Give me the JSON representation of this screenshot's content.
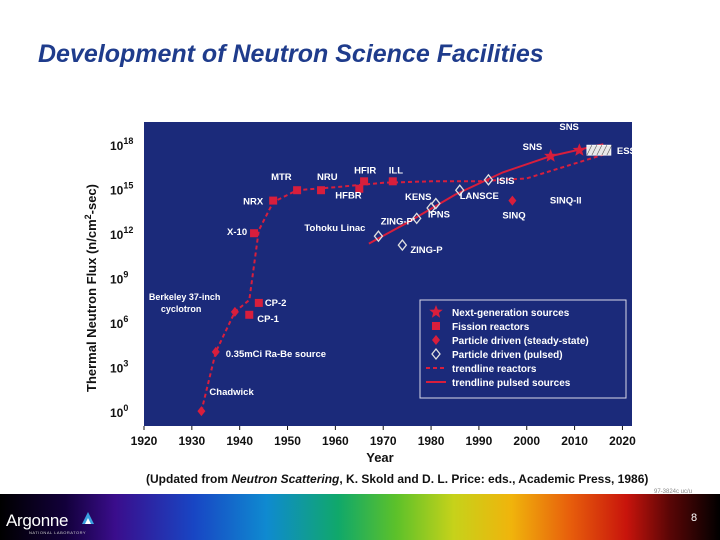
{
  "slide": {
    "title": "Development of Neutron Science Facilities",
    "credit_prefix": "(Updated from ",
    "credit_book": "Neutron Scattering",
    "credit_suffix": ", K. Skold and D. L. Price: eds., Academic Press, 1986)",
    "figure_code": "97-3824c uc/u",
    "logo_text": "Argonne",
    "logo_subtext": "NATIONAL LABORATORY",
    "page_number": "8"
  },
  "colors": {
    "panel": "#1b2a7a",
    "trend": "#d81e3c",
    "title": "#1f3c8c",
    "marker": "#d81e3c"
  },
  "chart_data": {
    "type": "scatter",
    "xlabel": "Year",
    "ylabel_main": "Thermal Neutron Flux (n/cm",
    "ylabel_sup": "2",
    "ylabel_end": "-sec)",
    "xlim": [
      1920,
      2022
    ],
    "ylim_exponent": [
      -1,
      19.5
    ],
    "log_scale_y": true,
    "x_ticks": [
      "1920",
      "1930",
      "1940",
      "1950",
      "1960",
      "1970",
      "1980",
      "1990",
      "2000",
      "2010",
      "2020"
    ],
    "y_ticks": [
      {
        "exp": 0,
        "base": "10",
        "sup": "0"
      },
      {
        "exp": 3,
        "base": "10",
        "sup": "3"
      },
      {
        "exp": 6,
        "base": "10",
        "sup": "6"
      },
      {
        "exp": 9,
        "base": "10",
        "sup": "9"
      },
      {
        "exp": 12,
        "base": "10",
        "sup": "12"
      },
      {
        "exp": 15,
        "base": "10",
        "sup": "15"
      },
      {
        "exp": 18,
        "base": "10",
        "sup": "18"
      }
    ],
    "series": [
      {
        "name": "Next-generation sources",
        "marker": "star",
        "points": [
          {
            "label": "SNS",
            "year": 2005,
            "exp": 17.2
          },
          {
            "label": "SNS",
            "year": 2011,
            "exp": 17.6
          }
        ]
      },
      {
        "name": "Fission reactors",
        "marker": "square",
        "points": [
          {
            "label": "X-10",
            "year": 1943,
            "exp": 12.0
          },
          {
            "label": "CP-2",
            "year": 1944,
            "exp": 7.3
          },
          {
            "label": "CP-1",
            "year": 1942,
            "exp": 6.5
          },
          {
            "label": "NRX",
            "year": 1947,
            "exp": 14.2
          },
          {
            "label": "MTR",
            "year": 1952,
            "exp": 14.9
          },
          {
            "label": "NRU",
            "year": 1957,
            "exp": 14.9
          },
          {
            "label": "HFBR",
            "year": 1965,
            "exp": 15.0
          },
          {
            "label": "HFIR",
            "year": 1966,
            "exp": 15.5
          },
          {
            "label": "ILL",
            "year": 1972,
            "exp": 15.5
          }
        ]
      },
      {
        "name": "Particle driven (steady-state)",
        "marker": "diamond",
        "points": [
          {
            "label": "Chadwick",
            "year": 1932,
            "exp": 0.0
          },
          {
            "label": "0.35mCi Ra-Be source",
            "year": 1935,
            "exp": 4.0
          },
          {
            "label": "Berkeley 37-inch cyclotron",
            "year": 1939,
            "exp": 6.7
          },
          {
            "label": "SINQ",
            "year": 1997,
            "exp": 14.2
          }
        ]
      },
      {
        "name": "Particle driven (pulsed)",
        "marker": "open-diamond",
        "points": [
          {
            "label": "Tohoku Linac",
            "year": 1969,
            "exp": 11.8
          },
          {
            "label": "ZING-P",
            "year": 1974,
            "exp": 11.2
          },
          {
            "label": "ZING-P'",
            "year": 1977,
            "exp": 13.0
          },
          {
            "label": "KENS",
            "year": 1980,
            "exp": 13.7
          },
          {
            "label": "IPNS",
            "year": 1981,
            "exp": 14.0
          },
          {
            "label": "LANSCE",
            "year": 1986,
            "exp": 14.9
          },
          {
            "label": "ISIS",
            "year": 1992,
            "exp": 15.6
          }
        ]
      }
    ],
    "trendline_reactors": {
      "name": "trendline reactors",
      "points": [
        [
          1932,
          0
        ],
        [
          1935,
          4
        ],
        [
          1939,
          6.7
        ],
        [
          1942,
          7.5
        ],
        [
          1944,
          12.2
        ],
        [
          1947,
          14.1
        ],
        [
          1952,
          14.9
        ],
        [
          1960,
          15.1
        ],
        [
          1970,
          15.4
        ],
        [
          1980,
          15.5
        ],
        [
          1990,
          15.5
        ],
        [
          2000,
          15.7
        ],
        [
          2018,
          17.5
        ]
      ]
    },
    "trendline_pulsed": {
      "name": "trendline pulsed sources",
      "points": [
        [
          1967,
          11.3
        ],
        [
          1975,
          12.7
        ],
        [
          1985,
          14.6
        ],
        [
          1995,
          16.1
        ],
        [
          2005,
          17.2
        ],
        [
          2016,
          18.0
        ]
      ]
    },
    "extra_labels": [
      {
        "label": "SINQ-II",
        "year": 2004,
        "exp": 14.4
      },
      {
        "label": "ESS",
        "year": 2018,
        "exp": 17.6
      }
    ],
    "legend_position": "bottom-right"
  }
}
